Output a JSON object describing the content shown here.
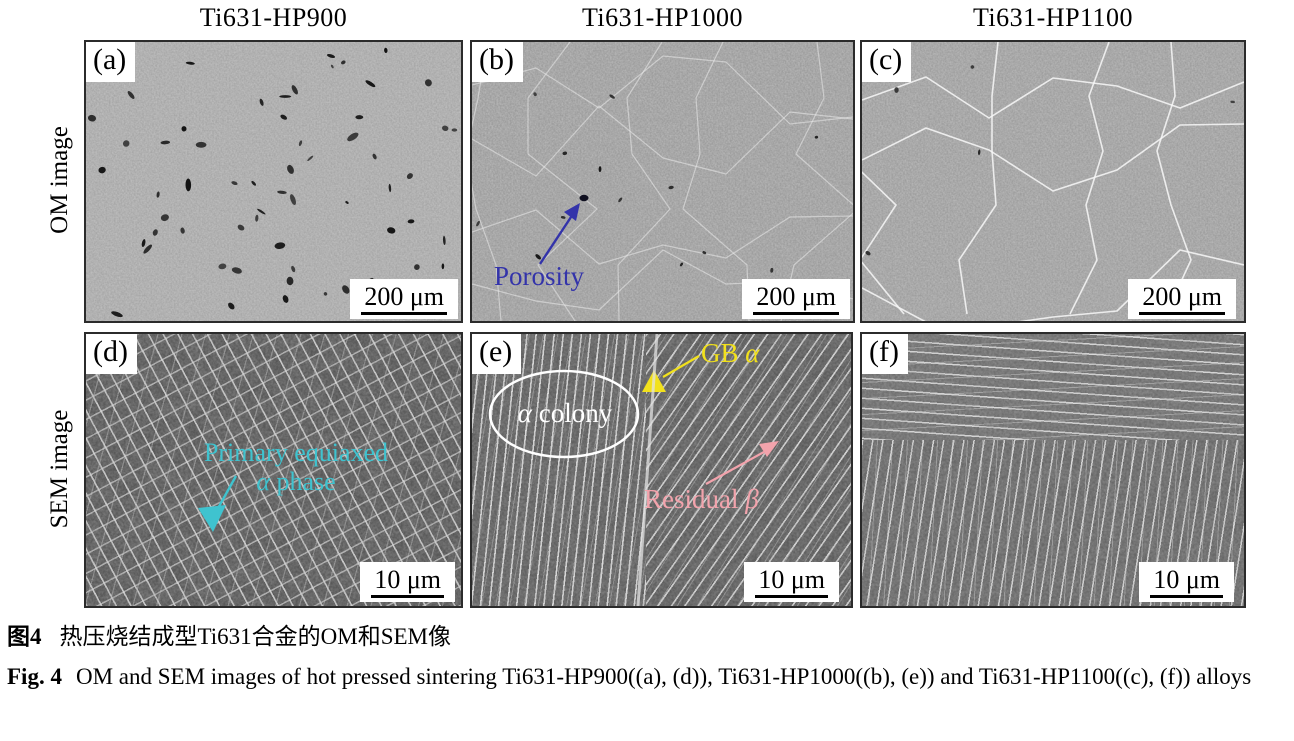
{
  "figure_title": "OM and SEM micrographs of Ti631 alloys",
  "columns": {
    "titles": [
      "Ti631-HP900",
      "Ti631-HP1000",
      "Ti631-HP1100"
    ]
  },
  "rows": {
    "labels": [
      "OM image",
      "SEM image"
    ]
  },
  "panels": {
    "a": {
      "label": "(a)",
      "scale": "200 μm"
    },
    "b": {
      "label": "(b)",
      "scale": "200 μm",
      "ann_porosity": "Porosity"
    },
    "c": {
      "label": "(c)",
      "scale": "200 μm"
    },
    "d": {
      "label": "(d)",
      "scale": "10 μm",
      "ann_line1": "Primary equiaxed",
      "ann_greek": "α",
      "ann_rest": " phase"
    },
    "e": {
      "label": "(e)",
      "scale": "10 μm",
      "colony_greek": "α",
      "colony_rest": " colony",
      "gb_prefix": "GB ",
      "gb_greek": "α",
      "residual_prefix": "Residual ",
      "residual_greek": "β"
    },
    "f": {
      "label": "(f)",
      "scale": "10 μm"
    }
  },
  "caption": {
    "zh_label": "图4",
    "zh_text": "热压烧结成型Ti631合金的OM和SEM像",
    "en_label": "Fig. 4",
    "en_text": "OM and SEM images of hot pressed sintering Ti631-HP900((a), (d)), Ti631-HP1000((b), (e)) and Ti631-HP1100((c), (f)) alloys"
  },
  "colors": {
    "porosity_blue": "#3333aa",
    "primary_equiaxed_cyan": "#3fc3cf",
    "gb_alpha_yellow": "#f2e11c",
    "residual_beta_pink": "#f2a3ac",
    "colony_white": "#ffffff",
    "panel_border": "#2b2b2b"
  }
}
